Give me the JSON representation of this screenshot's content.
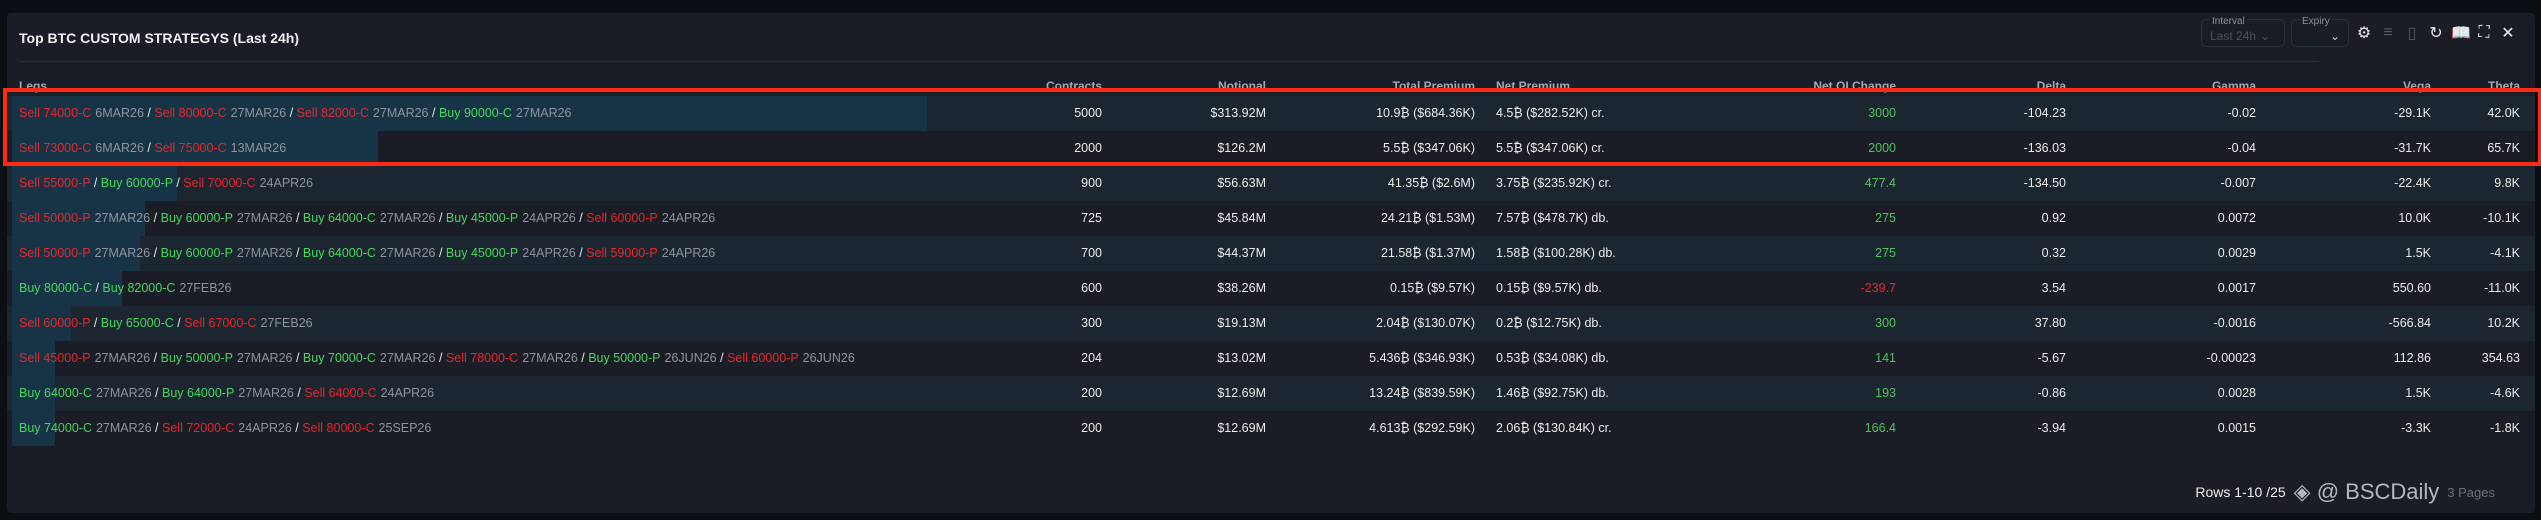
{
  "title": "Top BTC CUSTOM STRATEGYS (Last 24h)",
  "controls": {
    "interval_label": "Interval",
    "interval_value": "Last 24h",
    "expiry_label": "Expiry",
    "expiry_value": "",
    "icons": [
      "gear-icon",
      "filter-icon",
      "csv-icon",
      "refresh-icon",
      "book-icon",
      "fullscreen-icon",
      "close-icon"
    ]
  },
  "columns": [
    "Legs",
    "Contracts",
    "Notional",
    "Total Premium",
    "Net Premium",
    "Net OI Change",
    "Delta",
    "Gamma",
    "Vega",
    "Theta"
  ],
  "rows": [
    {
      "legs": [
        {
          "side": "Sell",
          "strike": "74000-C",
          "expiry": "6MAR26"
        },
        {
          "side": "Sell",
          "strike": "80000-C",
          "expiry": "27MAR26"
        },
        {
          "side": "Sell",
          "strike": "82000-C",
          "expiry": "27MAR26"
        },
        {
          "side": "Buy",
          "strike": "90000-C",
          "expiry": "27MAR26"
        }
      ],
      "bar": 1.0,
      "contracts": "5000",
      "notional": "$313.92M",
      "total_premium": "10.9₿ ($684.36K)",
      "net_premium": "4.5₿ ($282.52K) cr.",
      "net_oi": "3000",
      "net_oi_sign": "pos",
      "delta": "-104.23",
      "gamma": "-0.02",
      "vega": "-29.1K",
      "theta": "42.0K"
    },
    {
      "legs": [
        {
          "side": "Sell",
          "strike": "73000-C",
          "expiry": "6MAR26"
        },
        {
          "side": "Sell",
          "strike": "75000-C",
          "expiry": "13MAR26"
        }
      ],
      "bar": 0.4,
      "contracts": "2000",
      "notional": "$126.2M",
      "total_premium": "5.5₿ ($347.06K)",
      "net_premium": "5.5₿ ($347.06K) cr.",
      "net_oi": "2000",
      "net_oi_sign": "pos",
      "delta": "-136.03",
      "gamma": "-0.04",
      "vega": "-31.7K",
      "theta": "65.7K"
    },
    {
      "legs": [
        {
          "side": "Sell",
          "strike": "55000-P",
          "expiry": ""
        },
        {
          "side": "Buy",
          "strike": "60000-P",
          "expiry": ""
        },
        {
          "side": "Sell",
          "strike": "70000-C",
          "expiry": "24APR26"
        }
      ],
      "bar": 0.18,
      "contracts": "900",
      "notional": "$56.63M",
      "total_premium": "41.35₿ ($2.6M)",
      "net_premium": "3.75₿ ($235.92K) cr.",
      "net_oi": "477.4",
      "net_oi_sign": "pos",
      "delta": "-134.50",
      "gamma": "-0.007",
      "vega": "-22.4K",
      "theta": "9.8K"
    },
    {
      "legs": [
        {
          "side": "Sell",
          "strike": "50000-P",
          "expiry": "27MAR26"
        },
        {
          "side": "Buy",
          "strike": "60000-P",
          "expiry": "27MAR26"
        },
        {
          "side": "Buy",
          "strike": "64000-C",
          "expiry": "27MAR26"
        },
        {
          "side": "Buy",
          "strike": "45000-P",
          "expiry": "24APR26"
        },
        {
          "side": "Sell",
          "strike": "60000-P",
          "expiry": "24APR26"
        }
      ],
      "bar": 0.145,
      "contracts": "725",
      "notional": "$45.84M",
      "total_premium": "24.21₿ ($1.53M)",
      "net_premium": "7.57₿ ($478.7K) db.",
      "net_oi": "275",
      "net_oi_sign": "pos",
      "delta": "0.92",
      "gamma": "0.0072",
      "vega": "10.0K",
      "theta": "-10.1K"
    },
    {
      "legs": [
        {
          "side": "Sell",
          "strike": "50000-P",
          "expiry": "27MAR26"
        },
        {
          "side": "Buy",
          "strike": "60000-P",
          "expiry": "27MAR26"
        },
        {
          "side": "Buy",
          "strike": "64000-C",
          "expiry": "27MAR26"
        },
        {
          "side": "Buy",
          "strike": "45000-P",
          "expiry": "24APR26"
        },
        {
          "side": "Sell",
          "strike": "59000-P",
          "expiry": "24APR26"
        }
      ],
      "bar": 0.14,
      "contracts": "700",
      "notional": "$44.37M",
      "total_premium": "21.58₿ ($1.37M)",
      "net_premium": "1.58₿ ($100.28K) db.",
      "net_oi": "275",
      "net_oi_sign": "pos",
      "delta": "0.32",
      "gamma": "0.0029",
      "vega": "1.5K",
      "theta": "-4.1K"
    },
    {
      "legs": [
        {
          "side": "Buy",
          "strike": "80000-C",
          "expiry": ""
        },
        {
          "side": "Buy",
          "strike": "82000-C",
          "expiry": "27FEB26"
        }
      ],
      "bar": 0.12,
      "contracts": "600",
      "notional": "$38.26M",
      "total_premium": "0.15₿ ($9.57K)",
      "net_premium": "0.15₿ ($9.57K) db.",
      "net_oi": "-239.7",
      "net_oi_sign": "neg",
      "delta": "3.54",
      "gamma": "0.0017",
      "vega": "550.60",
      "theta": "-11.0K"
    },
    {
      "legs": [
        {
          "side": "Sell",
          "strike": "60000-P",
          "expiry": ""
        },
        {
          "side": "Buy",
          "strike": "65000-C",
          "expiry": ""
        },
        {
          "side": "Sell",
          "strike": "67000-C",
          "expiry": "27FEB26"
        }
      ],
      "bar": 0.065,
      "contracts": "300",
      "notional": "$19.13M",
      "total_premium": "2.04₿ ($130.07K)",
      "net_premium": "0.2₿ ($12.75K) db.",
      "net_oi": "300",
      "net_oi_sign": "pos",
      "delta": "37.80",
      "gamma": "-0.0016",
      "vega": "-566.84",
      "theta": "10.2K"
    },
    {
      "legs": [
        {
          "side": "Sell",
          "strike": "45000-P",
          "expiry": "27MAR26"
        },
        {
          "side": "Buy",
          "strike": "50000-P",
          "expiry": "27MAR26"
        },
        {
          "side": "Buy",
          "strike": "70000-C",
          "expiry": "27MAR26"
        },
        {
          "side": "Sell",
          "strike": "78000-C",
          "expiry": "27MAR26"
        },
        {
          "side": "Buy",
          "strike": "50000-P",
          "expiry": "26JUN26"
        },
        {
          "side": "Sell",
          "strike": "60000-P",
          "expiry": "26JUN26"
        }
      ],
      "bar": 0.047,
      "contracts": "204",
      "notional": "$13.02M",
      "total_premium": "5.436₿ ($346.93K)",
      "net_premium": "0.53₿ ($34.08K) db.",
      "net_oi": "141",
      "net_oi_sign": "pos",
      "delta": "-5.67",
      "gamma": "-0.00023",
      "vega": "112.86",
      "theta": "354.63"
    },
    {
      "legs": [
        {
          "side": "Buy",
          "strike": "64000-C",
          "expiry": "27MAR26"
        },
        {
          "side": "Buy",
          "strike": "64000-P",
          "expiry": "27MAR26"
        },
        {
          "side": "Sell",
          "strike": "64000-C",
          "expiry": "24APR26"
        }
      ],
      "bar": 0.047,
      "contracts": "200",
      "notional": "$12.69M",
      "total_premium": "13.24₿ ($839.59K)",
      "net_premium": "1.46₿ ($92.75K) db.",
      "net_oi": "193",
      "net_oi_sign": "pos",
      "delta": "-0.86",
      "gamma": "0.0028",
      "vega": "1.5K",
      "theta": "-4.6K"
    },
    {
      "legs": [
        {
          "side": "Buy",
          "strike": "74000-C",
          "expiry": "27MAR26"
        },
        {
          "side": "Sell",
          "strike": "72000-C",
          "expiry": "24APR26"
        },
        {
          "side": "Sell",
          "strike": "80000-C",
          "expiry": "25SEP26"
        }
      ],
      "bar": 0.047,
      "contracts": "200",
      "notional": "$12.69M",
      "total_premium": "4.613₿ ($292.59K)",
      "net_premium": "2.06₿ ($130.84K) cr.",
      "net_oi": "166.4",
      "net_oi_sign": "pos",
      "delta": "-3.94",
      "gamma": "0.0015",
      "vega": "-3.3K",
      "theta": "-1.8K"
    }
  ],
  "footer": {
    "rows_text": "Rows 1-10 /25",
    "pages_text": "3 Pages",
    "watermark": "@ BSCDaily"
  },
  "colors": {
    "sell": "#e3262c",
    "buy": "#43d75c",
    "highlight": "#ff2a14",
    "bar": "#173446"
  }
}
